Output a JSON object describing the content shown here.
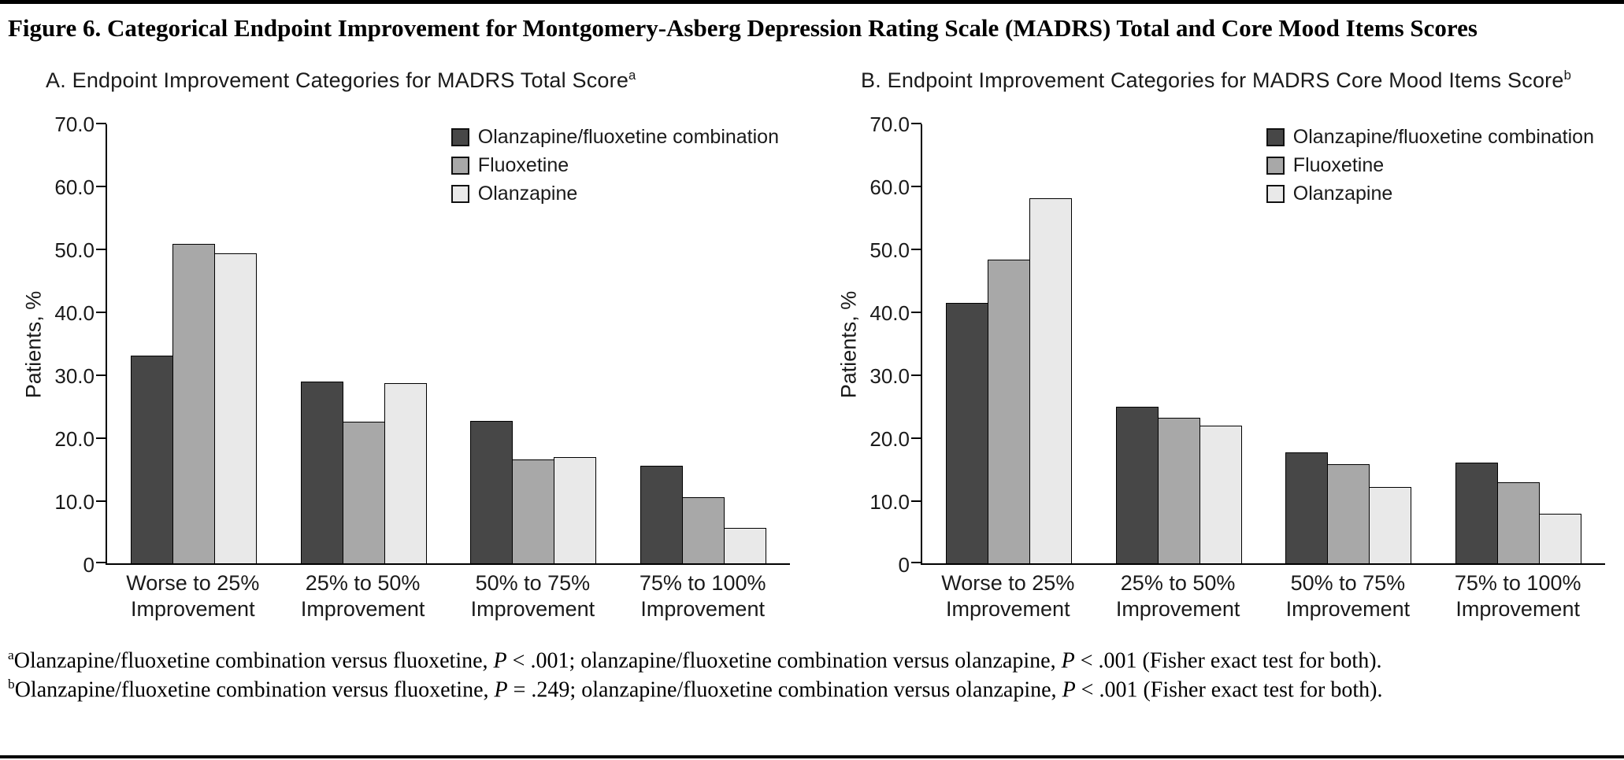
{
  "figure": {
    "title": "Figure 6. Categorical Endpoint Improvement for Montgomery-Asberg Depression Rating Scale (MADRS) Total and Core Mood Items Scores",
    "footnotes": [
      {
        "sup": "a",
        "segments": [
          {
            "text": "Olanzapine/fluoxetine combination versus fluoxetine, "
          },
          {
            "text": "P",
            "italic": true
          },
          {
            "text": " < .001; olanzapine/fluoxetine combination versus olanzapine, "
          },
          {
            "text": "P",
            "italic": true
          },
          {
            "text": " < .001 (Fisher exact test for both)."
          }
        ]
      },
      {
        "sup": "b",
        "segments": [
          {
            "text": "Olanzapine/fluoxetine combination versus fluoxetine, "
          },
          {
            "text": "P",
            "italic": true
          },
          {
            "text": " = .249; olanzapine/fluoxetine combination versus olanzapine, "
          },
          {
            "text": "P",
            "italic": true
          },
          {
            "text": " < .001 (Fisher exact test for both)."
          }
        ]
      }
    ]
  },
  "chart_data": [
    {
      "type": "bar",
      "panel_label": "A.",
      "title": "Endpoint Improvement Categories for MADRS Total Score",
      "superscript": "a",
      "ylabel": "Patients, %",
      "ylim": [
        0,
        70
      ],
      "grid": false,
      "legend_position": "top-right",
      "yticks": [
        {
          "value": 0,
          "label": "0"
        },
        {
          "value": 10,
          "label": "10.0"
        },
        {
          "value": 20,
          "label": "20.0"
        },
        {
          "value": 30,
          "label": "30.0"
        },
        {
          "value": 40,
          "label": "40.0"
        },
        {
          "value": 50,
          "label": "50.0"
        },
        {
          "value": 60,
          "label": "60.0"
        },
        {
          "value": 70,
          "label": "70.0"
        }
      ],
      "categories": [
        "Worse to 25%\nImprovement",
        "25% to 50%\nImprovement",
        "50% to 75%\nImprovement",
        "75% to 100%\nImprovement"
      ],
      "series": [
        {
          "name": "Olanzapine/fluoxetine combination",
          "color": "#474747",
          "values": [
            33.0,
            28.8,
            22.6,
            15.5
          ]
        },
        {
          "name": "Fluoxetine",
          "color": "#a8a8a8",
          "values": [
            50.7,
            22.5,
            16.5,
            10.5
          ]
        },
        {
          "name": "Olanzapine",
          "color": "#e9e9e9",
          "values": [
            49.2,
            28.6,
            16.8,
            5.6
          ]
        }
      ]
    },
    {
      "type": "bar",
      "panel_label": "B.",
      "title": "Endpoint Improvement Categories for MADRS Core Mood Items Score",
      "superscript": "b",
      "ylabel": "Patients, %",
      "ylim": [
        0,
        70
      ],
      "grid": false,
      "legend_position": "top-right",
      "yticks": [
        {
          "value": 0,
          "label": "0"
        },
        {
          "value": 10,
          "label": "10.0"
        },
        {
          "value": 20,
          "label": "20.0"
        },
        {
          "value": 30,
          "label": "30.0"
        },
        {
          "value": 40,
          "label": "40.0"
        },
        {
          "value": 50,
          "label": "50.0"
        },
        {
          "value": 60,
          "label": "60.0"
        },
        {
          "value": 70,
          "label": "70.0"
        }
      ],
      "categories": [
        "Worse to 25%\nImprovement",
        "25% to 50%\nImprovement",
        "50% to 75%\nImprovement",
        "75% to 100%\nImprovement"
      ],
      "series": [
        {
          "name": "Olanzapine/fluoxetine combination",
          "color": "#474747",
          "values": [
            41.3,
            24.9,
            17.6,
            16.0
          ]
        },
        {
          "name": "Fluoxetine",
          "color": "#a8a8a8",
          "values": [
            48.2,
            23.1,
            15.7,
            12.9
          ]
        },
        {
          "name": "Olanzapine",
          "color": "#e9e9e9",
          "values": [
            58.0,
            21.8,
            12.1,
            7.8
          ]
        }
      ]
    }
  ]
}
